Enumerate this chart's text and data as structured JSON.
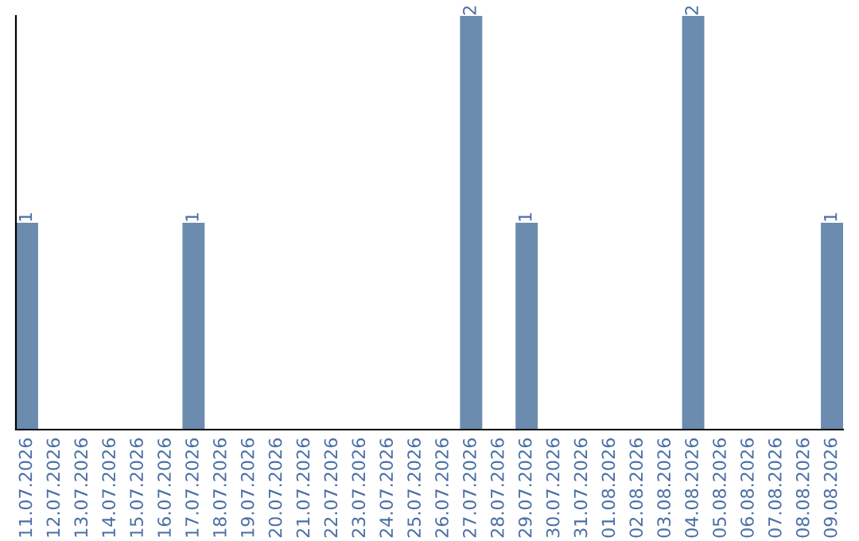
{
  "chart_data": {
    "type": "bar",
    "categories": [
      "11.07.2026",
      "12.07.2026",
      "13.07.2026",
      "14.07.2026",
      "15.07.2026",
      "16.07.2026",
      "17.07.2026",
      "18.07.2026",
      "19.07.2026",
      "20.07.2026",
      "21.07.2026",
      "22.07.2026",
      "23.07.2026",
      "24.07.2026",
      "25.07.2026",
      "26.07.2026",
      "27.07.2026",
      "28.07.2026",
      "29.07.2026",
      "30.07.2026",
      "31.07.2026",
      "01.08.2026",
      "02.08.2026",
      "03.08.2026",
      "04.08.2026",
      "05.08.2026",
      "06.08.2026",
      "07.08.2026",
      "08.08.2026",
      "09.08.2026"
    ],
    "values": [
      1,
      0,
      0,
      0,
      0,
      0,
      1,
      0,
      0,
      0,
      0,
      0,
      0,
      0,
      0,
      0,
      2,
      0,
      1,
      0,
      0,
      0,
      0,
      0,
      2,
      0,
      0,
      0,
      0,
      1
    ],
    "value_labels": [
      "1",
      null,
      null,
      null,
      null,
      null,
      "1",
      null,
      null,
      null,
      null,
      null,
      null,
      null,
      null,
      null,
      "2",
      null,
      "1",
      null,
      null,
      null,
      null,
      null,
      "2",
      null,
      null,
      null,
      null,
      "1"
    ],
    "color": "#6b8cae",
    "tick_labels": "x",
    "grid": false,
    "legend": false
  }
}
